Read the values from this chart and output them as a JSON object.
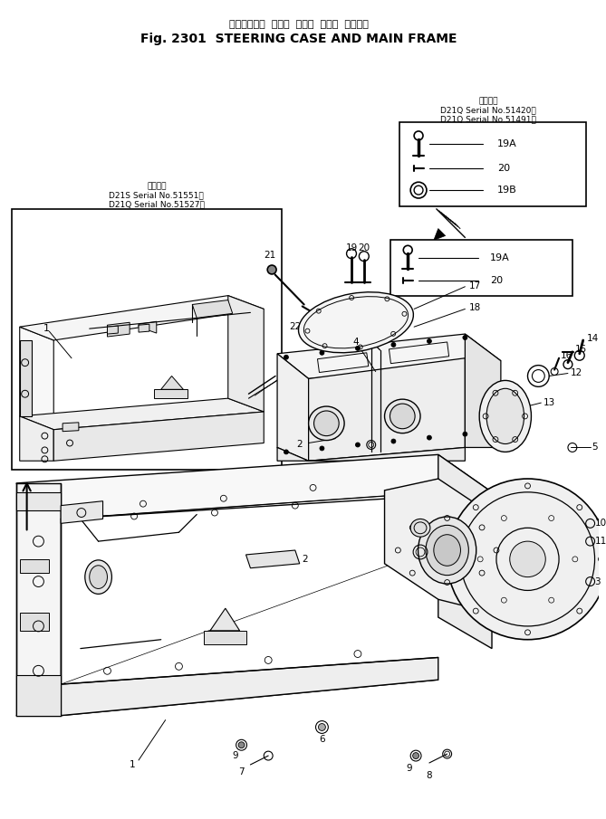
{
  "title_jp": "ステアリング  ケース  および  メイン  フレーム",
  "title_en": "Fig. 2301  STEERING CASE AND MAIN FRAME",
  "inset1_title": "適用号機",
  "inset1_l1": "D21S Serial No.51551－",
  "inset1_l2": "D21Q Serial No.51527～",
  "inset2_title": "適用号機",
  "inset2_l1": "D21Q Serial No.51420～",
  "inset2_l2": "D21Q Serial No.51491－",
  "bg": "#ffffff",
  "lc": "#000000",
  "fig_w": 6.69,
  "fig_h": 9.05,
  "dpi": 100
}
